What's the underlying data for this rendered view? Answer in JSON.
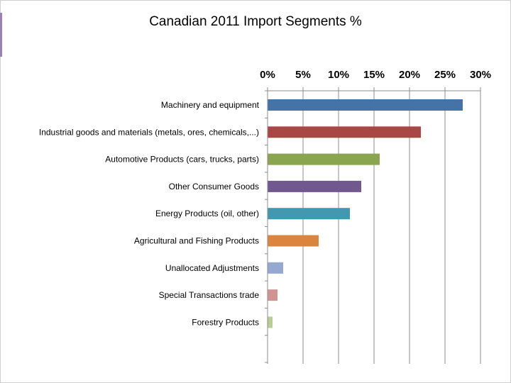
{
  "colors": {
    "frame_border": "#cfcfcf",
    "left_accent": "#9b7fb8",
    "axis": "#8c8c8c"
  },
  "chart_data": {
    "type": "bar",
    "orientation": "horizontal",
    "title": "Canadian 2011 Import Segments %",
    "xlabel": "",
    "ylabel": "",
    "x_axis_position": "top",
    "grid": true,
    "legend": "none",
    "xlim": [
      0,
      30
    ],
    "x_ticks": [
      {
        "value": 0,
        "label": "0%"
      },
      {
        "value": 5,
        "label": "5%"
      },
      {
        "value": 10,
        "label": "10%"
      },
      {
        "value": 15,
        "label": "15%"
      },
      {
        "value": 20,
        "label": "20%"
      },
      {
        "value": 25,
        "label": "25%"
      },
      {
        "value": 30,
        "label": "30%"
      }
    ],
    "categories": [
      "Machinery and equipment",
      "Industrial goods and materials (metals, ores, chemicals,...)",
      "Automotive Products (cars, trucks, parts)",
      "Other Consumer Goods",
      "Energy Products (oil, other)",
      "Agricultural and Fishing Products",
      "Unallocated Adjustments",
      "Special Transactions trade",
      "Forestry Products"
    ],
    "values": [
      27.5,
      21.6,
      15.8,
      13.2,
      11.6,
      7.2,
      2.2,
      1.4,
      0.7
    ],
    "bar_colors": [
      "#4572a7",
      "#aa4643",
      "#89a54e",
      "#71588f",
      "#4198af",
      "#db843d",
      "#93a9cf",
      "#d19392",
      "#b9cd96"
    ]
  }
}
